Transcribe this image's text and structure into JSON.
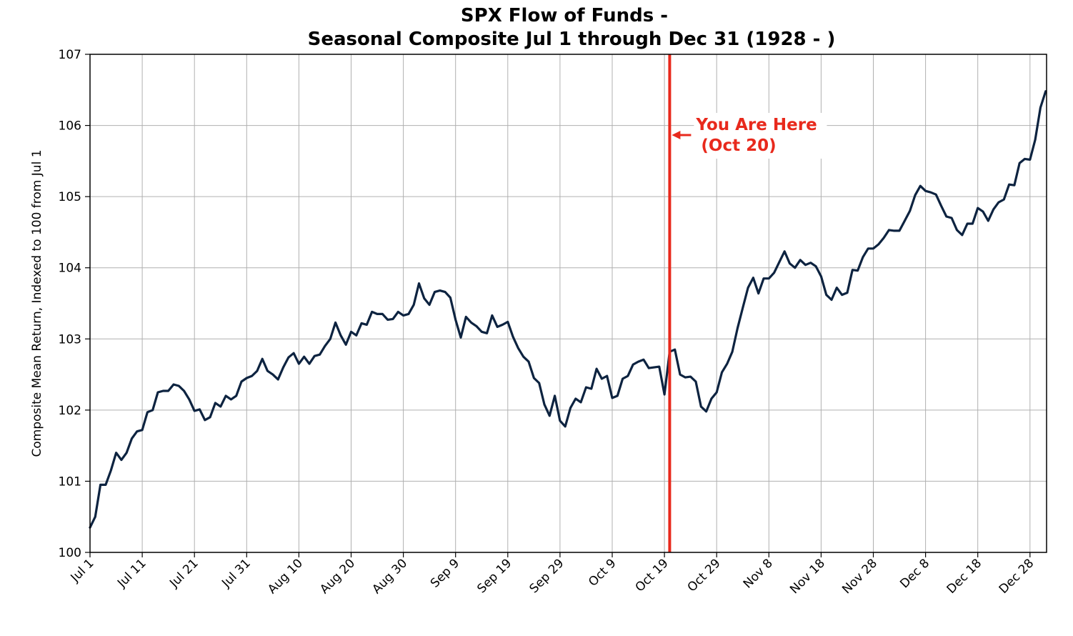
{
  "chart_data": {
    "type": "line",
    "title_lines": [
      "SPX Flow of Funds -",
      "Seasonal Composite Jul 1 through Dec 31 (1928 - )"
    ],
    "xlabel": "",
    "ylabel": "Composite Mean Return, Indexed to 100 from Jul 1",
    "ylim": [
      100,
      107
    ],
    "y_ticks": [
      100,
      101,
      102,
      103,
      104,
      105,
      106,
      107
    ],
    "x_ticks": [
      "Jul 1",
      "Jul 11",
      "Jul 21",
      "Jul 31",
      "Aug 10",
      "Aug 20",
      "Aug 30",
      "Sep 9",
      "Sep 19",
      "Sep 29",
      "Oct 9",
      "Oct 19",
      "Oct 29",
      "Nov 8",
      "Nov 18",
      "Nov 28",
      "Dec 8",
      "Dec 18",
      "Dec 28"
    ],
    "grid": true,
    "line_color": "#0d2340",
    "marker_color": "#e8291c",
    "marker_day": 111,
    "annotation": {
      "line1": "You Are Here",
      "line2": "(Oct 20)",
      "color": "#e8291c"
    },
    "series": [
      {
        "x_day": [
          0,
          1,
          2,
          3,
          4,
          5,
          6,
          7,
          8,
          9,
          10,
          11,
          12,
          13,
          14,
          15,
          16,
          17,
          18,
          19,
          20,
          21,
          22,
          23,
          24,
          25,
          26,
          27,
          28,
          29,
          30,
          31,
          32,
          33,
          34,
          35,
          36,
          37,
          38,
          39,
          40,
          41,
          42,
          43,
          44,
          45,
          46,
          47,
          48,
          49,
          50,
          51,
          52,
          53,
          54,
          55,
          56,
          57,
          58,
          59,
          60,
          61,
          62,
          63,
          64,
          65,
          66,
          67,
          68,
          69,
          70,
          71,
          72,
          73,
          74,
          75,
          76,
          77,
          78,
          79,
          80,
          81,
          82,
          83,
          84,
          85,
          86,
          87,
          88,
          89,
          90,
          91,
          92,
          93,
          94,
          95,
          96,
          97,
          98,
          99,
          100,
          101,
          102,
          103,
          104,
          105,
          106,
          107,
          108,
          109,
          110,
          111,
          112,
          113,
          114,
          115,
          116,
          117,
          118,
          119,
          120,
          121,
          122,
          123,
          124,
          125,
          126,
          127,
          128,
          129,
          130,
          131,
          132,
          133,
          134,
          135,
          136,
          137,
          138,
          139,
          140,
          141,
          142,
          143,
          144,
          145,
          146,
          147,
          148,
          149,
          150,
          151,
          152,
          153,
          154,
          155,
          156,
          157,
          158,
          159,
          160,
          161,
          162,
          163,
          164,
          165,
          166,
          167,
          168,
          169,
          170,
          171,
          172,
          173,
          174,
          175,
          176,
          177,
          178,
          179,
          180,
          181,
          182,
          183
        ],
        "values": [
          100.35,
          100.5,
          100.95,
          100.95,
          101.15,
          101.4,
          101.3,
          101.4,
          101.6,
          101.7,
          101.72,
          101.97,
          102.0,
          102.25,
          102.27,
          102.27,
          102.36,
          102.34,
          102.27,
          102.15,
          101.99,
          102.01,
          101.86,
          101.9,
          102.1,
          102.05,
          102.2,
          102.15,
          102.2,
          102.4,
          102.45,
          102.48,
          102.55,
          102.72,
          102.55,
          102.5,
          102.43,
          102.6,
          102.74,
          102.8,
          102.65,
          102.75,
          102.65,
          102.76,
          102.78,
          102.9,
          103.0,
          103.23,
          103.05,
          102.92,
          103.1,
          103.05,
          103.22,
          103.2,
          103.38,
          103.35,
          103.35,
          103.27,
          103.28,
          103.38,
          103.33,
          103.35,
          103.48,
          103.78,
          103.57,
          103.48,
          103.66,
          103.68,
          103.66,
          103.58,
          103.27,
          103.02,
          103.31,
          103.23,
          103.18,
          103.1,
          103.08,
          103.33,
          103.17,
          103.2,
          103.24,
          103.03,
          102.87,
          102.75,
          102.68,
          102.45,
          102.38,
          102.08,
          101.92,
          102.2,
          101.85,
          101.77,
          102.03,
          102.16,
          102.11,
          102.32,
          102.3,
          102.58,
          102.44,
          102.48,
          102.17,
          102.2,
          102.44,
          102.48,
          102.64,
          102.68,
          102.71,
          102.59,
          102.6,
          102.61,
          102.22,
          102.82,
          102.85,
          102.5,
          102.46,
          102.47,
          102.4,
          102.05,
          101.98,
          102.16,
          102.25,
          102.53,
          102.65,
          102.82,
          103.15,
          103.44,
          103.72,
          103.86,
          103.64,
          103.85,
          103.85,
          103.93,
          104.08,
          104.23,
          104.06,
          104.0,
          104.11,
          104.04,
          104.07,
          104.02,
          103.88,
          103.62,
          103.55,
          103.72,
          103.62,
          103.65,
          103.97,
          103.96,
          104.15,
          104.27,
          104.27,
          104.33,
          104.42,
          104.53,
          104.52,
          104.52,
          104.66,
          104.8,
          105.02,
          105.15,
          105.08,
          105.06,
          105.03,
          104.87,
          104.72,
          104.7,
          104.53,
          104.46,
          104.62,
          104.62,
          104.84,
          104.79,
          104.66,
          104.82,
          104.92,
          104.96,
          105.17,
          105.16,
          105.47,
          105.53,
          105.52,
          105.8,
          106.25,
          106.48
        ]
      }
    ]
  }
}
